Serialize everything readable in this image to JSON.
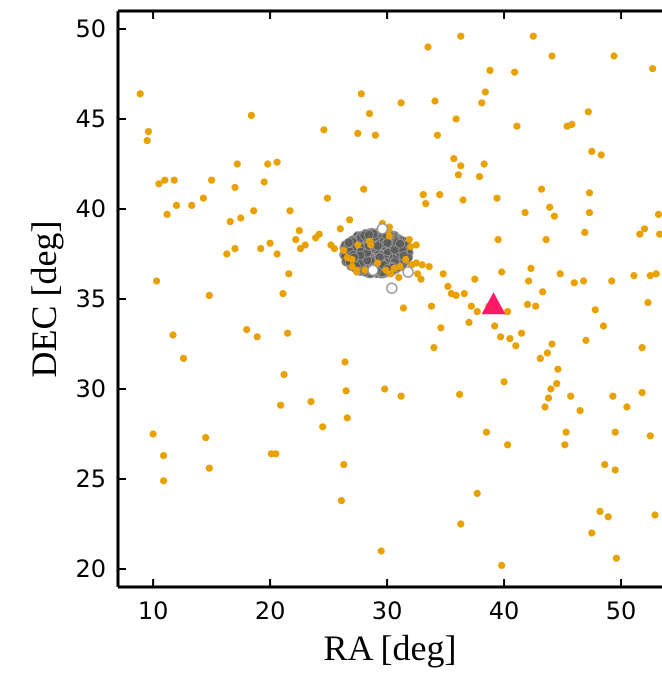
{
  "chart_data": {
    "type": "scatter",
    "xlabel": "RA [deg]",
    "ylabel": "DEC [deg]",
    "xlim": [
      7,
      53.5
    ],
    "ylim": [
      19,
      51
    ],
    "x_ticks": [
      10,
      20,
      30,
      40,
      50
    ],
    "y_ticks": [
      20,
      25,
      30,
      35,
      40,
      45,
      50
    ],
    "grid": false,
    "colors": {
      "orange": "#E8A100",
      "gray_fill": "#5a5a5a",
      "gray_edge": "#9a9a9a",
      "marker": "#FF1A66"
    },
    "series": [
      {
        "marker": "dot",
        "color": "#E8A100",
        "points": [
          [
            8.9,
            46.4
          ],
          [
            9.6,
            44.3
          ],
          [
            9.5,
            43.8
          ],
          [
            10.0,
            27.5
          ],
          [
            10.3,
            36.0
          ],
          [
            10.5,
            41.4
          ],
          [
            10.9,
            26.3
          ],
          [
            10.9,
            24.9
          ],
          [
            11.2,
            39.7
          ],
          [
            11.0,
            41.6
          ],
          [
            11.8,
            41.6
          ],
          [
            11.7,
            33.0
          ],
          [
            12.0,
            40.2
          ],
          [
            12.6,
            31.7
          ],
          [
            13.3,
            40.2
          ],
          [
            14.3,
            40.6
          ],
          [
            14.5,
            27.3
          ],
          [
            14.8,
            35.2
          ],
          [
            14.8,
            25.6
          ],
          [
            15.0,
            41.6
          ],
          [
            16.3,
            37.5
          ],
          [
            16.6,
            39.3
          ],
          [
            17.0,
            37.8
          ],
          [
            17.0,
            41.2
          ],
          [
            17.2,
            42.5
          ],
          [
            17.5,
            39.5
          ],
          [
            18.0,
            33.3
          ],
          [
            18.4,
            45.2
          ],
          [
            18.6,
            39.9
          ],
          [
            18.9,
            32.9
          ],
          [
            19.2,
            37.8
          ],
          [
            19.5,
            41.5
          ],
          [
            19.8,
            42.5
          ],
          [
            20.0,
            38.1
          ],
          [
            20.1,
            26.4
          ],
          [
            20.5,
            26.4
          ],
          [
            20.6,
            37.5
          ],
          [
            20.6,
            42.6
          ],
          [
            20.9,
            29.1
          ],
          [
            21.1,
            35.3
          ],
          [
            21.2,
            30.8
          ],
          [
            21.5,
            33.1
          ],
          [
            21.6,
            36.4
          ],
          [
            21.7,
            39.9
          ],
          [
            22.2,
            38.3
          ],
          [
            22.5,
            38.8
          ],
          [
            22.6,
            37.8
          ],
          [
            23.0,
            38.0
          ],
          [
            23.5,
            29.3
          ],
          [
            23.9,
            38.4
          ],
          [
            24.2,
            38.6
          ],
          [
            24.5,
            27.9
          ],
          [
            24.6,
            44.4
          ],
          [
            24.9,
            40.6
          ],
          [
            25.2,
            38.0
          ],
          [
            25.5,
            37.8
          ],
          [
            26.0,
            38.9
          ],
          [
            26.1,
            23.8
          ],
          [
            26.3,
            25.8
          ],
          [
            26.4,
            31.5
          ],
          [
            26.5,
            29.9
          ],
          [
            26.6,
            28.4
          ],
          [
            26.8,
            39.4
          ],
          [
            27.0,
            37.2
          ],
          [
            27.4,
            36.6
          ],
          [
            27.5,
            44.2
          ],
          [
            27.8,
            46.4
          ],
          [
            28.0,
            41.1
          ],
          [
            28.5,
            45.3
          ],
          [
            29.0,
            44.1
          ],
          [
            29.5,
            21.0
          ],
          [
            29.8,
            30.0
          ],
          [
            30.2,
            38.5
          ],
          [
            31.2,
            29.6
          ],
          [
            31.2,
            45.9
          ],
          [
            31.4,
            34.5
          ],
          [
            32.0,
            37.9
          ],
          [
            32.5,
            37.0
          ],
          [
            33.0,
            36.9
          ],
          [
            33.1,
            40.8
          ],
          [
            33.3,
            40.3
          ],
          [
            33.5,
            49.0
          ],
          [
            33.6,
            36.8
          ],
          [
            33.8,
            34.6
          ],
          [
            34.0,
            32.3
          ],
          [
            34.1,
            46.0
          ],
          [
            34.3,
            44.1
          ],
          [
            34.5,
            40.8
          ],
          [
            34.6,
            33.4
          ],
          [
            34.8,
            36.4
          ],
          [
            35.2,
            35.7
          ],
          [
            35.5,
            35.3
          ],
          [
            35.7,
            42.8
          ],
          [
            35.9,
            35.2
          ],
          [
            35.9,
            45.0
          ],
          [
            36.1,
            41.9
          ],
          [
            36.2,
            29.7
          ],
          [
            36.3,
            49.6
          ],
          [
            36.3,
            42.4
          ],
          [
            36.3,
            22.5
          ],
          [
            36.5,
            40.5
          ],
          [
            36.6,
            35.3
          ],
          [
            37.0,
            33.7
          ],
          [
            37.2,
            34.6
          ],
          [
            37.5,
            36.1
          ],
          [
            37.7,
            24.2
          ],
          [
            37.7,
            34.3
          ],
          [
            37.9,
            41.8
          ],
          [
            38.3,
            42.5
          ],
          [
            38.1,
            45.9
          ],
          [
            38.4,
            46.5
          ],
          [
            38.5,
            27.6
          ],
          [
            38.7,
            34.6
          ],
          [
            38.8,
            47.7
          ],
          [
            39.2,
            33.5
          ],
          [
            39.4,
            40.6
          ],
          [
            39.5,
            38.3
          ],
          [
            39.7,
            32.9
          ],
          [
            39.8,
            36.5
          ],
          [
            39.8,
            20.2
          ],
          [
            40.0,
            30.4
          ],
          [
            40.3,
            26.9
          ],
          [
            40.3,
            34.3
          ],
          [
            40.5,
            32.8
          ],
          [
            40.9,
            47.6
          ],
          [
            41.0,
            32.4
          ],
          [
            41.1,
            44.6
          ],
          [
            41.5,
            33.1
          ],
          [
            41.8,
            39.8
          ],
          [
            42.0,
            34.7
          ],
          [
            42.1,
            36.0
          ],
          [
            42.3,
            36.7
          ],
          [
            42.5,
            49.6
          ],
          [
            42.7,
            34.6
          ],
          [
            43.1,
            31.7
          ],
          [
            43.2,
            41.1
          ],
          [
            43.3,
            35.4
          ],
          [
            43.5,
            29.0
          ],
          [
            43.6,
            38.3
          ],
          [
            43.7,
            32.0
          ],
          [
            43.8,
            29.5
          ],
          [
            43.9,
            40.1
          ],
          [
            44.0,
            30.0
          ],
          [
            44.1,
            48.5
          ],
          [
            44.1,
            32.5
          ],
          [
            44.3,
            39.6
          ],
          [
            44.5,
            30.3
          ],
          [
            44.6,
            31.1
          ],
          [
            44.8,
            36.4
          ],
          [
            45.2,
            26.9
          ],
          [
            45.3,
            27.6
          ],
          [
            45.4,
            44.6
          ],
          [
            45.7,
            29.6
          ],
          [
            45.8,
            44.7
          ],
          [
            46.0,
            35.9
          ],
          [
            46.5,
            28.8
          ],
          [
            46.8,
            36.0
          ],
          [
            46.9,
            38.7
          ],
          [
            47.0,
            32.7
          ],
          [
            47.2,
            45.4
          ],
          [
            47.3,
            39.8
          ],
          [
            47.3,
            40.9
          ],
          [
            47.5,
            43.2
          ],
          [
            47.5,
            22.0
          ],
          [
            47.8,
            34.4
          ],
          [
            48.2,
            23.2
          ],
          [
            48.3,
            43.0
          ],
          [
            48.5,
            33.5
          ],
          [
            48.6,
            25.8
          ],
          [
            48.9,
            22.9
          ],
          [
            49.2,
            36.0
          ],
          [
            49.3,
            29.6
          ],
          [
            49.4,
            48.5
          ],
          [
            49.5,
            25.5
          ],
          [
            49.5,
            27.6
          ],
          [
            49.6,
            20.6
          ],
          [
            50.5,
            29.0
          ],
          [
            51.1,
            36.3
          ],
          [
            51.6,
            38.6
          ],
          [
            51.8,
            29.8
          ],
          [
            51.8,
            32.3
          ],
          [
            52.0,
            38.9
          ],
          [
            52.3,
            34.8
          ],
          [
            52.5,
            27.4
          ],
          [
            52.5,
            36.3
          ],
          [
            52.7,
            47.8
          ],
          [
            52.9,
            23.0
          ],
          [
            53.0,
            36.4
          ],
          [
            53.2,
            39.7
          ],
          [
            53.3,
            38.6
          ],
          [
            26.3,
            37.7
          ],
          [
            26.6,
            37.3
          ],
          [
            27.0,
            36.8
          ],
          [
            27.4,
            36.5
          ],
          [
            28.1,
            36.6
          ],
          [
            28.5,
            38.2
          ],
          [
            29.2,
            37.0
          ],
          [
            29.9,
            36.6
          ],
          [
            30.6,
            36.7
          ],
          [
            31.1,
            36.8
          ],
          [
            31.6,
            37.2
          ],
          [
            32.1,
            36.9
          ],
          [
            32.6,
            36.4
          ],
          [
            32.9,
            36.1
          ],
          [
            32.5,
            38.0
          ],
          [
            31.9,
            38.3
          ],
          [
            30.1,
            38.8
          ],
          [
            29.6,
            39.2
          ],
          [
            30.2,
            39.0
          ],
          [
            30.3,
            36.4
          ],
          [
            31.0,
            36.2
          ],
          [
            27.5,
            38.0
          ],
          [
            28.6,
            38.0
          ]
        ]
      },
      {
        "marker": "open-circle",
        "color": "#9a9a9a",
        "points": [
          [
            30.4,
            35.6
          ],
          [
            29.6,
            38.9
          ],
          [
            28.8,
            36.6
          ],
          [
            31.8,
            36.5
          ]
        ]
      },
      {
        "marker": "triangle",
        "color": "#FF1A66",
        "points": [
          [
            39.1,
            34.7
          ]
        ]
      }
    ],
    "cluster": {
      "center": [
        29.1,
        37.55
      ],
      "ra_extent": [
        26.3,
        32.2
      ],
      "dec_extent": [
        36.3,
        38.9
      ],
      "description": "dense gray clump"
    }
  }
}
